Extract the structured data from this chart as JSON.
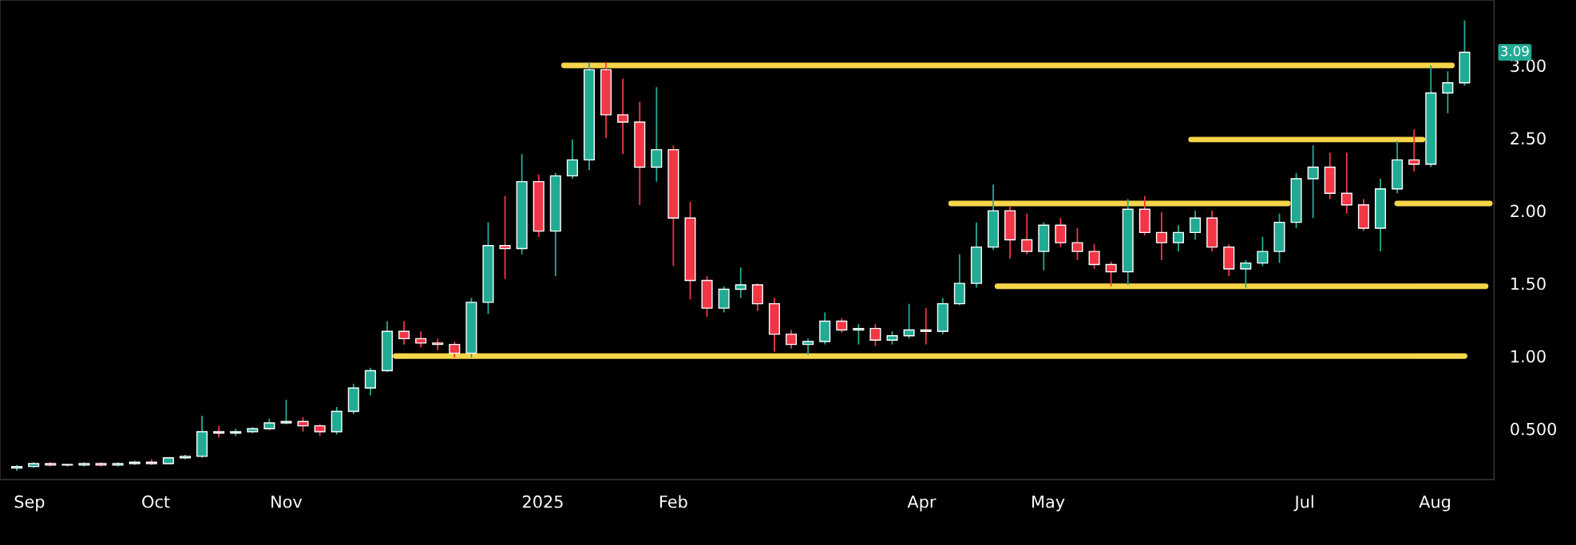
{
  "chart_data": {
    "type": "candlestick",
    "x": [
      "2024-08-29",
      "2024-09-02",
      "2024-09-06",
      "2024-09-10",
      "2024-09-14",
      "2024-09-18",
      "2024-09-22",
      "2024-09-26",
      "2024-09-30",
      "2024-10-04",
      "2024-10-08",
      "2024-10-12",
      "2024-10-16",
      "2024-10-20",
      "2024-10-24",
      "2024-10-28",
      "2024-11-01",
      "2024-11-05",
      "2024-11-09",
      "2024-11-13",
      "2024-11-17",
      "2024-11-21",
      "2024-11-25",
      "2024-11-29",
      "2024-12-03",
      "2024-12-07",
      "2024-12-11",
      "2024-12-15",
      "2024-12-19",
      "2024-12-23",
      "2024-12-27",
      "2024-12-31",
      "2025-01-04",
      "2025-01-08",
      "2025-01-12",
      "2025-01-16",
      "2025-01-20",
      "2025-01-24",
      "2025-01-28",
      "2025-02-01",
      "2025-02-05",
      "2025-02-09",
      "2025-02-13",
      "2025-02-17",
      "2025-02-21",
      "2025-02-25",
      "2025-03-01",
      "2025-03-05",
      "2025-03-09",
      "2025-03-13",
      "2025-03-17",
      "2025-03-21",
      "2025-03-25",
      "2025-03-29",
      "2025-04-02",
      "2025-04-06",
      "2025-04-10",
      "2025-04-14",
      "2025-04-18",
      "2025-04-22",
      "2025-04-26",
      "2025-04-30",
      "2025-05-04",
      "2025-05-08",
      "2025-05-12",
      "2025-05-16",
      "2025-05-20",
      "2025-05-24",
      "2025-05-28",
      "2025-06-01",
      "2025-06-05",
      "2025-06-09",
      "2025-06-13",
      "2025-06-17",
      "2025-06-21",
      "2025-06-25",
      "2025-06-29",
      "2025-07-03",
      "2025-07-07",
      "2025-07-11",
      "2025-07-15",
      "2025-07-19",
      "2025-07-23",
      "2025-07-27",
      "2025-07-31",
      "2025-08-04",
      "2025-08-08"
    ],
    "ohlc": [
      [
        0.23,
        0.25,
        0.21,
        0.24
      ],
      [
        0.24,
        0.27,
        0.23,
        0.26
      ],
      [
        0.26,
        0.27,
        0.24,
        0.25
      ],
      [
        0.25,
        0.26,
        0.24,
        0.25
      ],
      [
        0.25,
        0.27,
        0.24,
        0.26
      ],
      [
        0.26,
        0.27,
        0.24,
        0.25
      ],
      [
        0.25,
        0.27,
        0.24,
        0.26
      ],
      [
        0.26,
        0.28,
        0.25,
        0.27
      ],
      [
        0.27,
        0.29,
        0.25,
        0.26
      ],
      [
        0.26,
        0.3,
        0.26,
        0.3
      ],
      [
        0.3,
        0.32,
        0.29,
        0.31
      ],
      [
        0.31,
        0.59,
        0.3,
        0.48
      ],
      [
        0.48,
        0.52,
        0.44,
        0.47
      ],
      [
        0.47,
        0.5,
        0.45,
        0.48
      ],
      [
        0.48,
        0.51,
        0.47,
        0.5
      ],
      [
        0.5,
        0.57,
        0.49,
        0.54
      ],
      [
        0.54,
        0.7,
        0.53,
        0.55
      ],
      [
        0.55,
        0.58,
        0.48,
        0.52
      ],
      [
        0.52,
        0.53,
        0.45,
        0.48
      ],
      [
        0.48,
        0.65,
        0.46,
        0.62
      ],
      [
        0.62,
        0.81,
        0.6,
        0.78
      ],
      [
        0.78,
        0.92,
        0.73,
        0.9
      ],
      [
        0.9,
        1.24,
        0.89,
        1.17
      ],
      [
        1.17,
        1.24,
        1.08,
        1.12
      ],
      [
        1.12,
        1.17,
        1.06,
        1.09
      ],
      [
        1.09,
        1.12,
        1.04,
        1.08
      ],
      [
        1.08,
        1.1,
        0.99,
        1.02
      ],
      [
        1.02,
        1.4,
        0.99,
        1.37
      ],
      [
        1.37,
        1.92,
        1.29,
        1.76
      ],
      [
        1.76,
        2.1,
        1.53,
        1.74
      ],
      [
        1.74,
        2.39,
        1.7,
        2.2
      ],
      [
        2.2,
        2.25,
        1.82,
        1.86
      ],
      [
        1.86,
        2.26,
        1.55,
        2.24
      ],
      [
        2.24,
        2.49,
        2.22,
        2.35
      ],
      [
        2.35,
        3.02,
        2.28,
        2.97
      ],
      [
        2.97,
        3.02,
        2.5,
        2.66
      ],
      [
        2.66,
        2.91,
        2.39,
        2.61
      ],
      [
        2.61,
        2.75,
        2.04,
        2.3
      ],
      [
        2.3,
        2.85,
        2.2,
        2.42
      ],
      [
        2.42,
        2.45,
        1.62,
        1.95
      ],
      [
        1.95,
        2.06,
        1.39,
        1.52
      ],
      [
        1.52,
        1.55,
        1.27,
        1.33
      ],
      [
        1.33,
        1.48,
        1.3,
        1.46
      ],
      [
        1.46,
        1.61,
        1.4,
        1.49
      ],
      [
        1.49,
        1.5,
        1.31,
        1.36
      ],
      [
        1.36,
        1.4,
        1.03,
        1.15
      ],
      [
        1.15,
        1.18,
        1.05,
        1.08
      ],
      [
        1.08,
        1.12,
        1.01,
        1.1
      ],
      [
        1.1,
        1.3,
        1.08,
        1.24
      ],
      [
        1.24,
        1.26,
        1.16,
        1.18
      ],
      [
        1.18,
        1.22,
        1.08,
        1.19
      ],
      [
        1.19,
        1.22,
        1.07,
        1.11
      ],
      [
        1.11,
        1.17,
        1.08,
        1.14
      ],
      [
        1.14,
        1.36,
        1.12,
        1.18
      ],
      [
        1.18,
        1.33,
        1.08,
        1.17
      ],
      [
        1.17,
        1.4,
        1.15,
        1.36
      ],
      [
        1.36,
        1.7,
        1.35,
        1.5
      ],
      [
        1.5,
        1.92,
        1.47,
        1.75
      ],
      [
        1.75,
        2.18,
        1.73,
        2.0
      ],
      [
        2.0,
        2.03,
        1.67,
        1.8
      ],
      [
        1.8,
        1.98,
        1.7,
        1.72
      ],
      [
        1.72,
        1.92,
        1.59,
        1.9
      ],
      [
        1.9,
        1.95,
        1.75,
        1.78
      ],
      [
        1.78,
        1.88,
        1.66,
        1.72
      ],
      [
        1.72,
        1.77,
        1.6,
        1.63
      ],
      [
        1.63,
        1.65,
        1.48,
        1.58
      ],
      [
        1.58,
        2.08,
        1.49,
        2.01
      ],
      [
        2.01,
        2.1,
        1.83,
        1.85
      ],
      [
        1.85,
        1.99,
        1.66,
        1.78
      ],
      [
        1.78,
        1.9,
        1.72,
        1.85
      ],
      [
        1.85,
        2.0,
        1.8,
        1.95
      ],
      [
        1.95,
        2.0,
        1.72,
        1.75
      ],
      [
        1.75,
        1.77,
        1.55,
        1.6
      ],
      [
        1.6,
        1.66,
        1.47,
        1.64
      ],
      [
        1.64,
        1.82,
        1.62,
        1.72
      ],
      [
        1.72,
        1.98,
        1.64,
        1.92
      ],
      [
        1.92,
        2.26,
        1.88,
        2.22
      ],
      [
        2.22,
        2.45,
        1.95,
        2.3
      ],
      [
        2.3,
        2.4,
        2.08,
        2.12
      ],
      [
        2.12,
        2.4,
        1.98,
        2.04
      ],
      [
        2.04,
        2.08,
        1.86,
        1.88
      ],
      [
        1.88,
        2.22,
        1.72,
        2.15
      ],
      [
        2.15,
        2.48,
        2.12,
        2.35
      ],
      [
        2.35,
        2.56,
        2.27,
        2.32
      ],
      [
        2.32,
        3.0,
        2.3,
        2.81
      ],
      [
        2.81,
        2.96,
        2.67,
        2.88
      ],
      [
        2.88,
        3.31,
        2.86,
        3.09
      ]
    ],
    "series": [
      {
        "type": "line",
        "color": "#f7d54a",
        "x": [
          "2025-01-06",
          "2025-08-05"
        ],
        "values": [
          3.0,
          3.0
        ]
      },
      {
        "type": "line",
        "color": "#f7d54a",
        "x": [
          "2025-06-04",
          "2025-07-29"
        ],
        "values": [
          2.49,
          2.49
        ]
      },
      {
        "type": "line",
        "color": "#f7d54a",
        "x": [
          "2025-04-08",
          "2025-06-27"
        ],
        "values": [
          2.05,
          2.05
        ]
      },
      {
        "type": "line",
        "color": "#f7d54a",
        "x": [
          "2025-07-23",
          "2025-08-14"
        ],
        "values": [
          2.05,
          2.05
        ]
      },
      {
        "type": "line",
        "color": "#f7d54a",
        "x": [
          "2025-04-19",
          "2025-08-13"
        ],
        "values": [
          1.48,
          1.48
        ]
      },
      {
        "type": "line",
        "color": "#f7d54a",
        "x": [
          "2024-11-27",
          "2025-08-08"
        ],
        "values": [
          1.0,
          1.0
        ]
      }
    ],
    "xlim": [
      "2024-08-25",
      "2025-08-15"
    ],
    "xticks": [
      {
        "value": "2024-09-01",
        "label": "Sep"
      },
      {
        "value": "2024-10-01",
        "label": "Oct"
      },
      {
        "value": "2024-11-01",
        "label": "Nov"
      },
      {
        "value": "2025-01-01",
        "label": "2025"
      },
      {
        "value": "2025-02-01",
        "label": "Feb"
      },
      {
        "value": "2025-04-01",
        "label": "Apr"
      },
      {
        "value": "2025-05-01",
        "label": "May"
      },
      {
        "value": "2025-07-01",
        "label": "Jul"
      },
      {
        "value": "2025-08-01",
        "label": "Aug"
      }
    ],
    "ylim": [
      0.15,
      3.45
    ],
    "yticks": [
      {
        "value": 0.5,
        "label": "0.500"
      },
      {
        "value": 1.0,
        "label": "1.00"
      },
      {
        "value": 1.5,
        "label": "1.50"
      },
      {
        "value": 2.0,
        "label": "2.00"
      },
      {
        "value": 2.5,
        "label": "2.50"
      },
      {
        "value": 3.0,
        "label": "3.00"
      }
    ],
    "annotations": [
      {
        "text": "3.09",
        "x": "2025-08-08",
        "y": 3.09
      }
    ]
  }
}
